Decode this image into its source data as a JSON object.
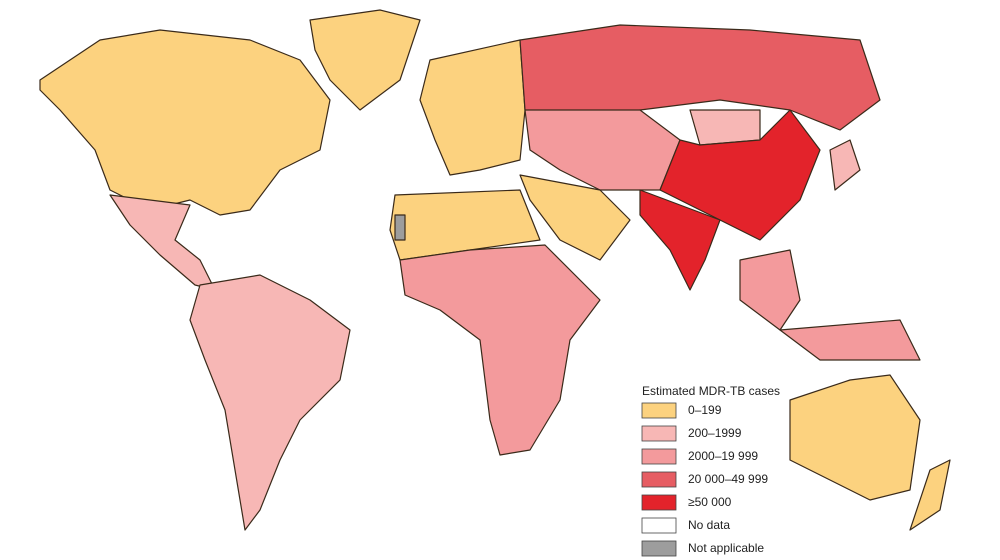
{
  "legend": {
    "title": "Estimated MDR-TB cases",
    "items": [
      {
        "label": "0–199",
        "color": "#fcd27f"
      },
      {
        "label": "200–1999",
        "color": "#f7b7b5"
      },
      {
        "label": "2000–19 999",
        "color": "#f39a9c"
      },
      {
        "label": "20 000–49 999",
        "color": "#e65d63"
      },
      {
        "label": "≥50 000",
        "color": "#e3232b"
      },
      {
        "label": "No data",
        "color": "#ffffff"
      },
      {
        "label": "Not applicable",
        "color": "#9d9d9d"
      }
    ]
  }
}
